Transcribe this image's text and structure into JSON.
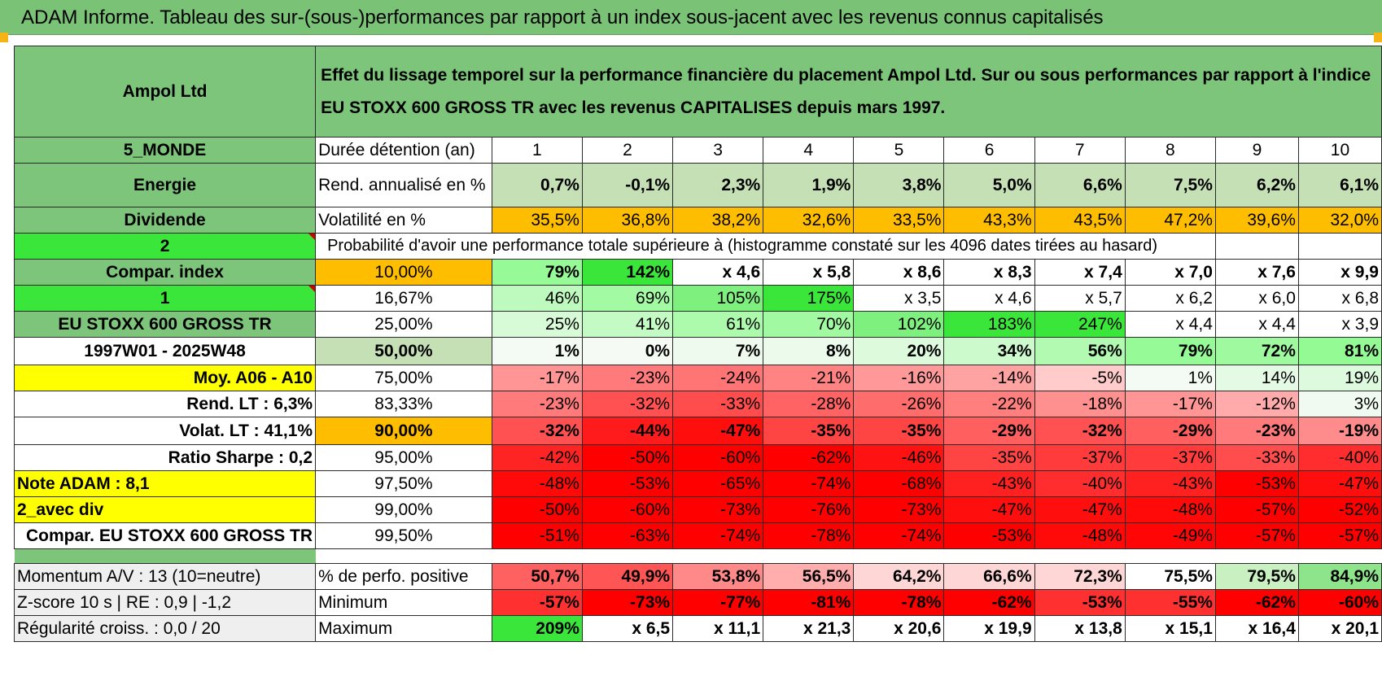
{
  "title": "ADAM Informe. Tableau des sur-(sous-)performances par rapport à un index sous-jacent avec les revenus connus capitalisés",
  "header": {
    "company": "Ampol Ltd",
    "description": "Effet du lissage temporel sur la performance financière du placement Ampol Ltd. Sur ou sous performances par rapport à l'indice EU STOXX 600 GROSS TR avec les revenus CAPITALISES depuis mars 1997."
  },
  "side": {
    "zone": "5_MONDE",
    "sector": "Energie",
    "income": "Dividende",
    "selector_a": "2",
    "compar_index": "Compar. index",
    "selector_b": "1",
    "index_name": "EU STOXX 600 GROSS TR",
    "period": "1997W01 - 2025W48",
    "moy": "Moy. A06 - A10",
    "rend_lt": "Rend. LT :    6,3%",
    "volat_lt": "Volat. LT :    41,1%",
    "sharpe": "Ratio Sharpe :     0,2",
    "note": "Note ADAM : 8,1",
    "avec_div": "2_avec div",
    "compar_stoxx": "Compar. EU STOXX 600 GROSS TR"
  },
  "labels": {
    "duree": "Durée détention (an)",
    "rend": "Rend. annualisé en %",
    "volat": "Volatilité en %",
    "proba": "Probabilité d'avoir une performance totale supérieure à (histogramme constaté sur les 4096 dates tirées au hasard)"
  },
  "years": [
    "1",
    "2",
    "3",
    "4",
    "5",
    "6",
    "7",
    "8",
    "9",
    "10"
  ],
  "rend": [
    "0,7%",
    "-0,1%",
    "2,3%",
    "1,9%",
    "3,8%",
    "5,0%",
    "6,6%",
    "7,5%",
    "6,2%",
    "6,1%"
  ],
  "volat": [
    "35,5%",
    "36,8%",
    "38,2%",
    "32,6%",
    "33,5%",
    "43,3%",
    "43,5%",
    "47,2%",
    "39,6%",
    "32,0%"
  ],
  "prob_rows": [
    {
      "p": "10,00%",
      "v": [
        "79%",
        "142%",
        "x 4,6",
        "x 5,8",
        "x 8,6",
        "x 8,3",
        "x 7,4",
        "x 7,0",
        "x 7,6",
        "x 9,9"
      ]
    },
    {
      "p": "16,67%",
      "v": [
        "46%",
        "69%",
        "105%",
        "175%",
        "x 3,5",
        "x 4,6",
        "x 5,7",
        "x 6,2",
        "x 6,0",
        "x 6,8"
      ]
    },
    {
      "p": "25,00%",
      "v": [
        "25%",
        "41%",
        "61%",
        "70%",
        "102%",
        "183%",
        "247%",
        "x 4,4",
        "x 4,4",
        "x 3,9"
      ]
    },
    {
      "p": "50,00%",
      "v": [
        "1%",
        "0%",
        "7%",
        "8%",
        "20%",
        "34%",
        "56%",
        "79%",
        "72%",
        "81%"
      ]
    },
    {
      "p": "75,00%",
      "v": [
        "-17%",
        "-23%",
        "-24%",
        "-21%",
        "-16%",
        "-14%",
        "-5%",
        "1%",
        "14%",
        "19%"
      ]
    },
    {
      "p": "83,33%",
      "v": [
        "-23%",
        "-32%",
        "-33%",
        "-28%",
        "-26%",
        "-22%",
        "-18%",
        "-17%",
        "-12%",
        "3%"
      ]
    },
    {
      "p": "90,00%",
      "v": [
        "-32%",
        "-44%",
        "-47%",
        "-35%",
        "-35%",
        "-29%",
        "-32%",
        "-29%",
        "-23%",
        "-19%"
      ]
    },
    {
      "p": "95,00%",
      "v": [
        "-42%",
        "-50%",
        "-60%",
        "-62%",
        "-46%",
        "-35%",
        "-37%",
        "-37%",
        "-33%",
        "-40%"
      ]
    },
    {
      "p": "97,50%",
      "v": [
        "-48%",
        "-53%",
        "-65%",
        "-74%",
        "-68%",
        "-43%",
        "-40%",
        "-43%",
        "-53%",
        "-47%"
      ]
    },
    {
      "p": "99,00%",
      "v": [
        "-50%",
        "-60%",
        "-73%",
        "-76%",
        "-73%",
        "-47%",
        "-47%",
        "-48%",
        "-57%",
        "-52%"
      ]
    },
    {
      "p": "99,50%",
      "v": [
        "-51%",
        "-63%",
        "-74%",
        "-78%",
        "-74%",
        "-53%",
        "-48%",
        "-49%",
        "-57%",
        "-57%"
      ]
    }
  ],
  "bottom": {
    "momentum": "Momentum A/V : 13 (10=neutre)",
    "zscore": "Z-score 10 s | RE : 0,9 | -1,2",
    "regularite": "Régularité croiss. : 0,0 / 20",
    "pos_label": "% de perfo. positive",
    "min_label": "Minimum",
    "max_label": "Maximum",
    "pos": [
      "50,7%",
      "49,9%",
      "53,8%",
      "56,5%",
      "64,2%",
      "66,6%",
      "72,3%",
      "75,5%",
      "79,5%",
      "84,9%"
    ],
    "min": [
      "-57%",
      "-73%",
      "-77%",
      "-81%",
      "-78%",
      "-62%",
      "-53%",
      "-55%",
      "-62%",
      "-60%"
    ],
    "max": [
      "209%",
      "x 6,5",
      "x 11,1",
      "x 21,3",
      "x 20,6",
      "x 19,9",
      "x 13,8",
      "x 15,1",
      "x 16,4",
      "x 20,1"
    ]
  },
  "colors": {
    "title_bg": "#79c276",
    "header_bg": "#7cc57a",
    "orange": "#ffbd00",
    "yellow": "#ffff00",
    "bright_green": "#39e639",
    "deep_red": "#ff0000"
  }
}
